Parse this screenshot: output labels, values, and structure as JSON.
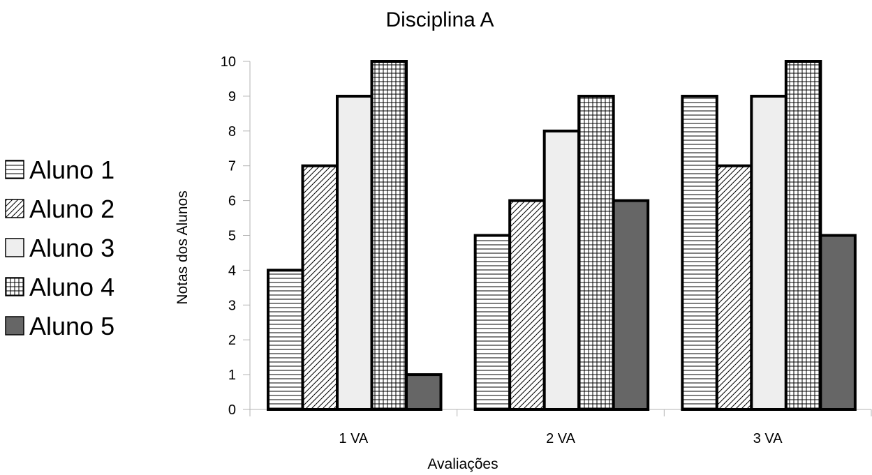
{
  "chart_data": {
    "type": "bar",
    "title": "Disciplina A",
    "xlabel": "Avaliações",
    "ylabel": "Notas dos Alunos",
    "categories": [
      "1 VA",
      "2 VA",
      "3 VA"
    ],
    "ylim": [
      0,
      10
    ],
    "yticks": [
      0,
      1,
      2,
      3,
      4,
      5,
      6,
      7,
      8,
      9,
      10
    ],
    "grid": false,
    "legend_position": "left",
    "series": [
      {
        "name": "Aluno 1",
        "pattern": "horizontal-lines",
        "values": [
          4,
          5,
          9
        ]
      },
      {
        "name": "Aluno 2",
        "pattern": "diagonal-lines",
        "values": [
          7,
          6,
          7
        ]
      },
      {
        "name": "Aluno 3",
        "pattern": "solid-light",
        "color": "#eeeeee",
        "values": [
          9,
          8,
          9
        ]
      },
      {
        "name": "Aluno 4",
        "pattern": "grid",
        "values": [
          10,
          9,
          10
        ]
      },
      {
        "name": "Aluno 5",
        "pattern": "solid-dark",
        "color": "#666666",
        "values": [
          1,
          6,
          5
        ]
      }
    ]
  }
}
